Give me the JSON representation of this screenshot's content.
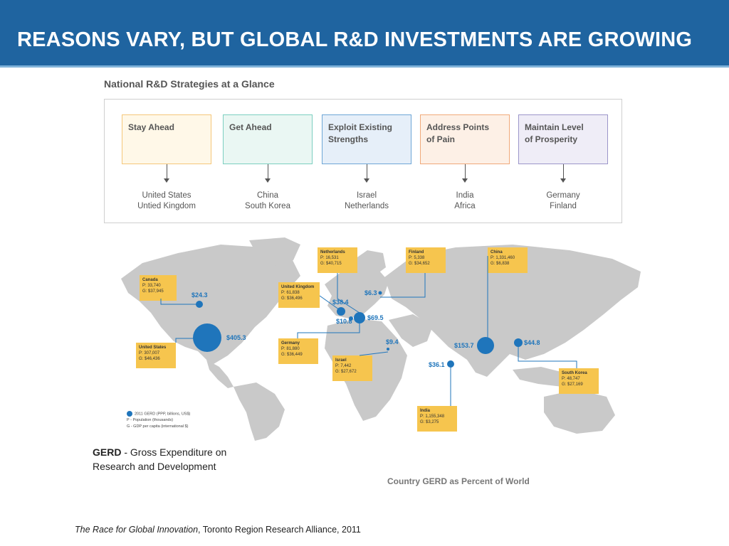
{
  "slide": {
    "title": "REASONS VARY, BUT GLOBAL R&D INVESTMENTS ARE GROWING"
  },
  "strategies_title": "National R&D Strategies at a Glance",
  "strategies": [
    {
      "label_line1": "Stay Ahead",
      "label_line2": "",
      "countries_line1": "United States",
      "countries_line2": "Untied Kingdom",
      "border": "#f5c77a",
      "fill": "#fff8e8"
    },
    {
      "label_line1": "Get Ahead",
      "label_line2": "",
      "countries_line1": "China",
      "countries_line2": "South Korea",
      "border": "#7ccfc0",
      "fill": "#eaf7f3"
    },
    {
      "label_line1": "Exploit Existing",
      "label_line2": "Strengths",
      "countries_line1": "Israel",
      "countries_line2": "Netherlands",
      "border": "#6ea6d6",
      "fill": "#e6eff9"
    },
    {
      "label_line1": "Address Points",
      "label_line2": "of Pain",
      "countries_line1": "India",
      "countries_line2": "Africa",
      "border": "#f0a97a",
      "fill": "#fdf0e6"
    },
    {
      "label_line1": "Maintain Level",
      "label_line2": "of Prosperity",
      "countries_line1": "Germany",
      "countries_line2": "Finland",
      "border": "#9b95c9",
      "fill": "#efedf7"
    }
  ],
  "map": {
    "callouts": [
      {
        "name": "Canada",
        "p": "P: 33,740",
        "g": "G: $37,945"
      },
      {
        "name": "United States",
        "p": "P: 307,007",
        "g": "G: $46,436"
      },
      {
        "name": "Netherlands",
        "p": "P: 16,531",
        "g": "G: $40,715"
      },
      {
        "name": "United Kingdom",
        "p": "P: 61,838",
        "g": "G: $36,496"
      },
      {
        "name": "Germany",
        "p": "P: 81,880",
        "g": "G: $36,449"
      },
      {
        "name": "Israel",
        "p": "P: 7,442",
        "g": "G: $27,672"
      },
      {
        "name": "Finland",
        "p": "P: 5,338",
        "g": "G: $34,652"
      },
      {
        "name": "China",
        "p": "P: 1,331,460",
        "g": "G: $6,838"
      },
      {
        "name": "South Korea",
        "p": "P: 48,747",
        "g": "G: $27,169"
      },
      {
        "name": "India",
        "p": "P: 1,155,348",
        "g": "G: $3,275"
      }
    ],
    "gerd_values": [
      "$24.3",
      "$405.3",
      "$38.4",
      "$10.8",
      "$69.5",
      "$6.3",
      "$9.4",
      "$36.1",
      "$153.7",
      "$44.8"
    ],
    "legend": {
      "dot": "2011 GERD (PPP, billions, US$)",
      "p": "P - Population (thousands)",
      "g": "G - GDP per capita (international $)"
    },
    "caption": "Country GERD as Percent of World",
    "bubble_color": "#1f75bb",
    "land_color": "#c9c9c9",
    "callout_color": "#f6c54e"
  },
  "gerd_definition": {
    "term": "GERD",
    "text": " - Gross Expenditure on Research and Development"
  },
  "source": {
    "title": "The Race for Global Innovation",
    "rest": ", Toronto Region Research Alliance, 2011"
  }
}
